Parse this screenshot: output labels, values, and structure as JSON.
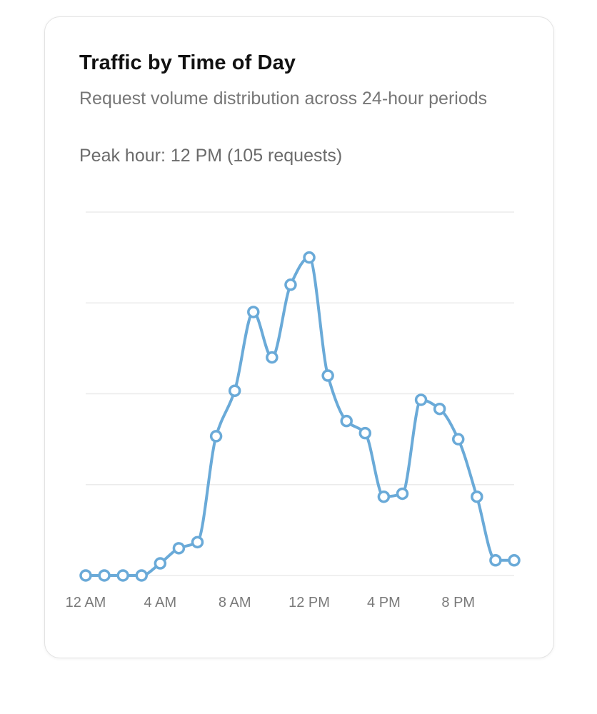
{
  "card": {
    "title": "Traffic by Time of Day",
    "subtitle": "Request volume distribution across 24-hour periods",
    "peak_text": "Peak hour: 12 PM (105 requests)"
  },
  "colors": {
    "line": "#6aaad8",
    "point_fill": "#ffffff",
    "grid": "#ebebeb"
  },
  "chart_data": {
    "type": "line",
    "x": [
      0,
      1,
      2,
      3,
      4,
      5,
      6,
      7,
      8,
      9,
      10,
      11,
      12,
      13,
      14,
      15,
      16,
      17,
      18,
      19,
      20,
      21,
      22,
      23
    ],
    "values": [
      0,
      0,
      0,
      0,
      4,
      9,
      11,
      46,
      61,
      87,
      72,
      96,
      105,
      66,
      51,
      47,
      26,
      27,
      58,
      55,
      45,
      26,
      5,
      5
    ],
    "xticks": [
      {
        "x": 0,
        "label": "12 AM"
      },
      {
        "x": 4,
        "label": "4 AM"
      },
      {
        "x": 8,
        "label": "8 AM"
      },
      {
        "x": 12,
        "label": "12 PM"
      },
      {
        "x": 16,
        "label": "4 PM"
      },
      {
        "x": 20,
        "label": "8 PM"
      }
    ],
    "xlim": [
      0,
      23
    ],
    "ylim": [
      0,
      120
    ],
    "ygrid": [
      0,
      30,
      60,
      90,
      120
    ],
    "grid": true,
    "title": "Traffic by Time of Day",
    "xlabel": "",
    "ylabel": ""
  }
}
